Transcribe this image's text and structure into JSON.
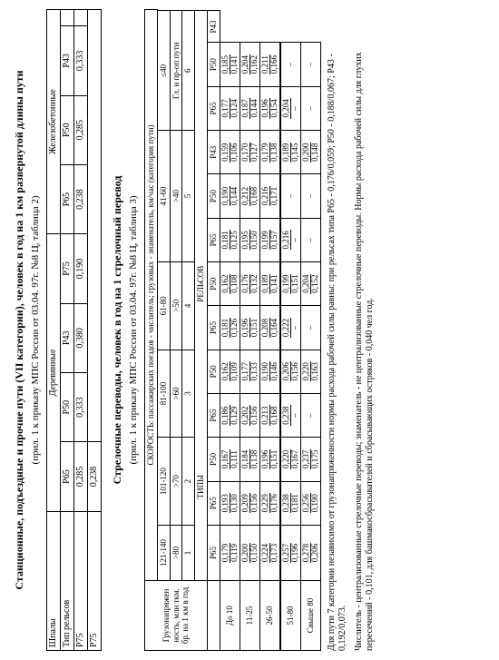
{
  "table1": {
    "title": "Станционные, подъездные и прочие пути (VII категории), человек в год на 1 км развернутой длины пути",
    "subtitle": "(прил. 1 к приказу МПС России от 03.04. 97г. №8 Ц, таблица 2)",
    "row_shpaly": "Шпалы",
    "group1": "Деревянные",
    "group2": "Железобетонные",
    "row_tip": "Тип рельсов",
    "col_p75": "Р75",
    "col_p65": "Р65",
    "col_p50": "Р50",
    "col_p43": "Р43",
    "v_d_p75": "0,238",
    "v_d_p65": "0,285",
    "v_d_p50": "0,333",
    "v_d_p43": "0,380",
    "v_z_p75": "0,190",
    "v_z_p65": "0,238",
    "v_z_p50": "0,285",
    "v_z_p43": "0,333"
  },
  "table2": {
    "title": "Стрелочные переводы, человек в год на 1 стрелочный перевод",
    "subtitle": "(прил. 1 к приказу МПС России от 03.04. 97г. №8 Ц, таблица 3)",
    "hdr_load": "Грузонапряжен ность, млн ткм. бр. на 1 км в год",
    "hdr_speed": "СКОРОСТЬ: пассажирских поездов - числитель; грузовых - знаменатель, км/час (категория пути)",
    "hdr_relsov": "РЕЛЬСОВ",
    "hdr_tipy": "ТИПЫ",
    "cat1_top": "121-140",
    "cat1_bot": ">80",
    "cat1_num": "1",
    "cat2_top": "101-120",
    "cat2_bot": ">70",
    "cat2_num": "2",
    "cat3_top": "81-100",
    "cat3_bot": ">60",
    "cat3_num": "3",
    "cat4_top": "61-80",
    "cat4_bot": ">50",
    "cat4_num": "4",
    "cat5_top": "41-60",
    "cat5_bot": ">40",
    "cat5_num": "5",
    "cat6_top": "≤40",
    "cat6_bot": "Гл. и пр-оп пути",
    "cat6_num": "6",
    "p65": "Р65",
    "p50": "Р50",
    "p43": "Р43",
    "r1": "До 10",
    "r1v": [
      "0,179",
      "0,193",
      "0,167",
      "0,186",
      "0,162",
      "0,181",
      "0,162",
      "0,181",
      "0,190",
      "0,159",
      "0,177",
      "0,185"
    ],
    "r1b": [
      "0,119",
      "0,130",
      "0,111",
      "0,129",
      "0,109",
      "0,126",
      "0,108",
      "0,125",
      "0,144",
      "0,106",
      "0,124",
      "0,141"
    ],
    "r2": "11-25",
    "r2v": [
      "0,200",
      "0,209",
      "0,184",
      "0,202",
      "0,177",
      "0,196",
      "0,176",
      "0,195",
      "0,212",
      "0,170",
      "0,187",
      "0,204"
    ],
    "r2b": [
      "0,150",
      "0,156",
      "0,138",
      "0,156",
      "0,133",
      "0,151",
      "0,132",
      "0,150",
      "0,168",
      "0,127",
      "0,144",
      "0,162"
    ],
    "r3": "26-50",
    "r3v": [
      "0,224",
      "0,229",
      "0,196",
      "0,213",
      "0,190",
      "0,208",
      "0,189",
      "0,199",
      "0,216",
      "0,179",
      "0,196",
      "0,211"
    ],
    "r3b": [
      "0,173",
      "0,176",
      "0,151",
      "0,168",
      "0,146",
      "0,164",
      "0,141",
      "0,157",
      "0,171",
      "0,138",
      "0,154",
      "0,166"
    ],
    "r4": "51-80",
    "r4v": [
      "0,257",
      "0,238",
      "0,220",
      "0,238",
      "0,206",
      "0,222",
      "0,199",
      "0,216",
      "–",
      "0,189",
      "0,204",
      "–"
    ],
    "r4b": [
      "0,196",
      "0,181",
      "0,167",
      "–",
      "0,156",
      "–",
      "0,151",
      "–",
      "–",
      "0,145",
      "–",
      "–"
    ],
    "r5": "Свыше 80",
    "r5v": [
      "0,278",
      "0,256",
      "0,237",
      "–",
      "0,220",
      "–",
      "0,204",
      "–",
      "–",
      "0,200",
      "–",
      "–"
    ],
    "r5b": [
      "0,206",
      "0,190",
      "0,175",
      "–",
      "0,163",
      "–",
      "0,152",
      "–",
      "–",
      "0,148",
      "–",
      "–"
    ],
    "footnote1": "Для пути 7 категории независимо от грузонапряженности нормы расхода рабочей силы равны: при рельсах типа Р65 - 0,176/0,059; Р50 - 0,188/0,067; Р43 - 0,192/0,073.",
    "footnote2": "Числитель - централизованные стрелочные переводы; знаменатель - не централизованные стрелочные переводы. Нормы расхода рабочей силы для глухих пересечений - 0,101, для башмакосбрасывателей и сбрасывающих остряков - 0,040 чел год."
  }
}
